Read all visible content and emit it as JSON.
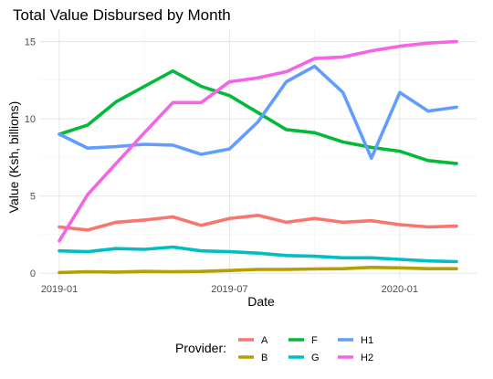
{
  "chart_data": {
    "type": "line",
    "title": "Total Value Disbursed by Month",
    "xlabel": "Date",
    "ylabel": "Value (Ksh, billions)",
    "x": [
      "2019-01",
      "2019-02",
      "2019-03",
      "2019-04",
      "2019-05",
      "2019-06",
      "2019-07",
      "2019-08",
      "2019-09",
      "2019-10",
      "2019-11",
      "2019-12",
      "2020-01",
      "2020-02",
      "2020-03"
    ],
    "x_ticks": [
      "2019-01",
      "2019-07",
      "2020-01"
    ],
    "y_ticks": [
      0,
      5,
      10,
      15
    ],
    "ylim": [
      -0.4,
      15.8
    ],
    "grid": true,
    "legend": {
      "title": "Provider:",
      "position": "bottom"
    },
    "series": [
      {
        "name": "A",
        "color": "#F8766D",
        "values": [
          3.0,
          2.8,
          3.3,
          3.45,
          3.65,
          3.1,
          3.55,
          3.75,
          3.3,
          3.55,
          3.3,
          3.4,
          3.15,
          3.0,
          3.05
        ]
      },
      {
        "name": "B",
        "color": "#B79F00",
        "values": [
          0.05,
          0.1,
          0.08,
          0.12,
          0.1,
          0.12,
          0.18,
          0.25,
          0.25,
          0.28,
          0.3,
          0.38,
          0.35,
          0.3,
          0.3
        ]
      },
      {
        "name": "F",
        "color": "#00BA38",
        "values": [
          9.0,
          9.6,
          11.1,
          12.1,
          13.1,
          12.1,
          11.5,
          10.4,
          9.3,
          9.1,
          8.5,
          8.15,
          7.9,
          7.3,
          7.1
        ]
      },
      {
        "name": "G",
        "color": "#00BFC4",
        "values": [
          1.45,
          1.4,
          1.6,
          1.55,
          1.7,
          1.45,
          1.4,
          1.3,
          1.15,
          1.1,
          1.0,
          1.0,
          0.9,
          0.8,
          0.75
        ]
      },
      {
        "name": "H1",
        "color": "#619CFF",
        "values": [
          9.0,
          8.1,
          8.2,
          8.35,
          8.3,
          7.7,
          8.05,
          9.8,
          12.4,
          13.4,
          11.7,
          7.45,
          11.7,
          10.5,
          10.75
        ]
      },
      {
        "name": "H2",
        "color": "#F564E3",
        "values": [
          2.1,
          5.1,
          7.1,
          9.1,
          11.05,
          11.05,
          12.4,
          12.65,
          13.05,
          13.9,
          14.0,
          14.4,
          14.7,
          14.9,
          15.0
        ]
      }
    ]
  }
}
